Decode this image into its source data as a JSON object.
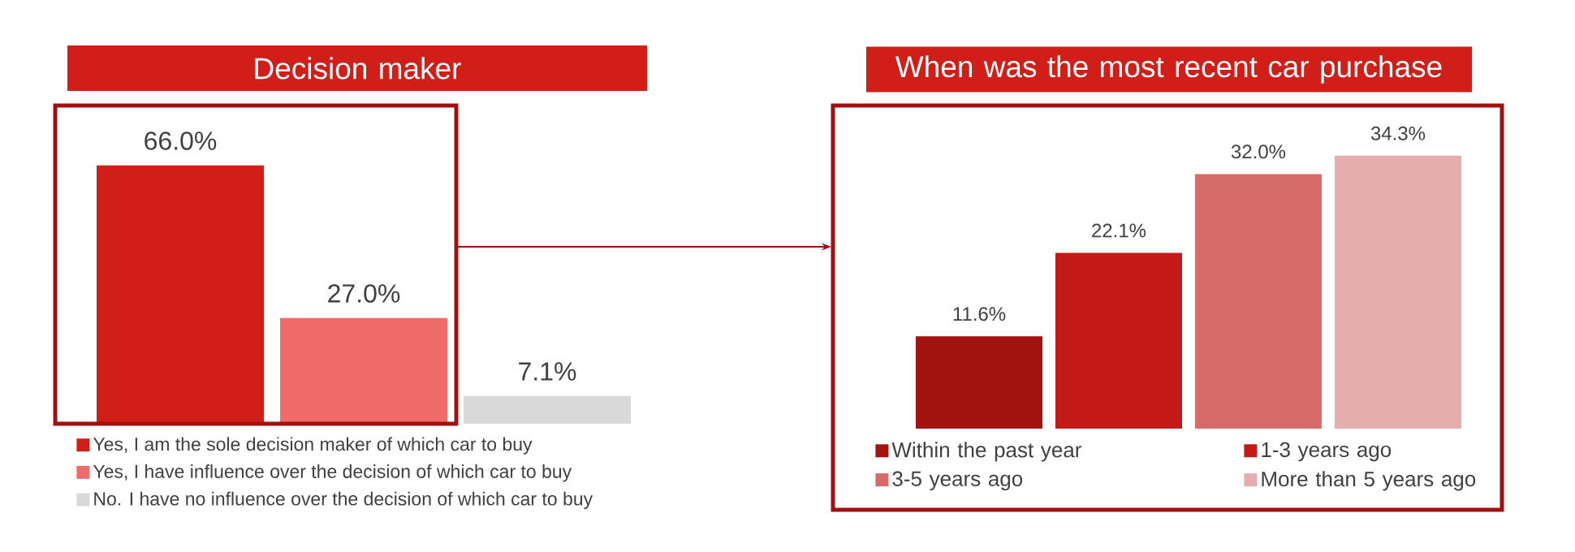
{
  "chart_data": [
    {
      "type": "bar",
      "title": "Decision maker",
      "categories": [
        null
      ],
      "legend": "bottom",
      "series": [
        {
          "name": "Yes, I am the sole decision maker of which car to buy",
          "color": "#d21e19",
          "values": [
            66.0
          ],
          "value_labels": [
            "66.0%"
          ]
        },
        {
          "name": "Yes, I have influence over the decision of which car to buy",
          "color": "#ef6b6a",
          "values": [
            27.0
          ],
          "value_labels": [
            "27.0%"
          ]
        },
        {
          "name": "No. I have no influence over the decision of which car to buy",
          "color": "#d9d9d9",
          "values": [
            7.1
          ],
          "value_labels": [
            "7.1%"
          ]
        }
      ]
    },
    {
      "type": "bar",
      "title": "When was the most recent car purchase",
      "categories": [
        null
      ],
      "legend": "bottom",
      "series": [
        {
          "name": "Within the past year",
          "color": "#a31410",
          "values": [
            11.6
          ],
          "value_labels": [
            "11.6%"
          ]
        },
        {
          "name": "1-3 years ago",
          "color": "#c41a17",
          "values": [
            22.1
          ],
          "value_labels": [
            "22.1%"
          ]
        },
        {
          "name": "3-5 years ago",
          "color": "#d96a6a",
          "values": [
            32.0
          ],
          "value_labels": [
            "32.0%"
          ]
        },
        {
          "name": "More than 5 years ago",
          "color": "#e6adad",
          "values": [
            34.3
          ],
          "value_labels": [
            "34.3%"
          ]
        }
      ]
    }
  ]
}
